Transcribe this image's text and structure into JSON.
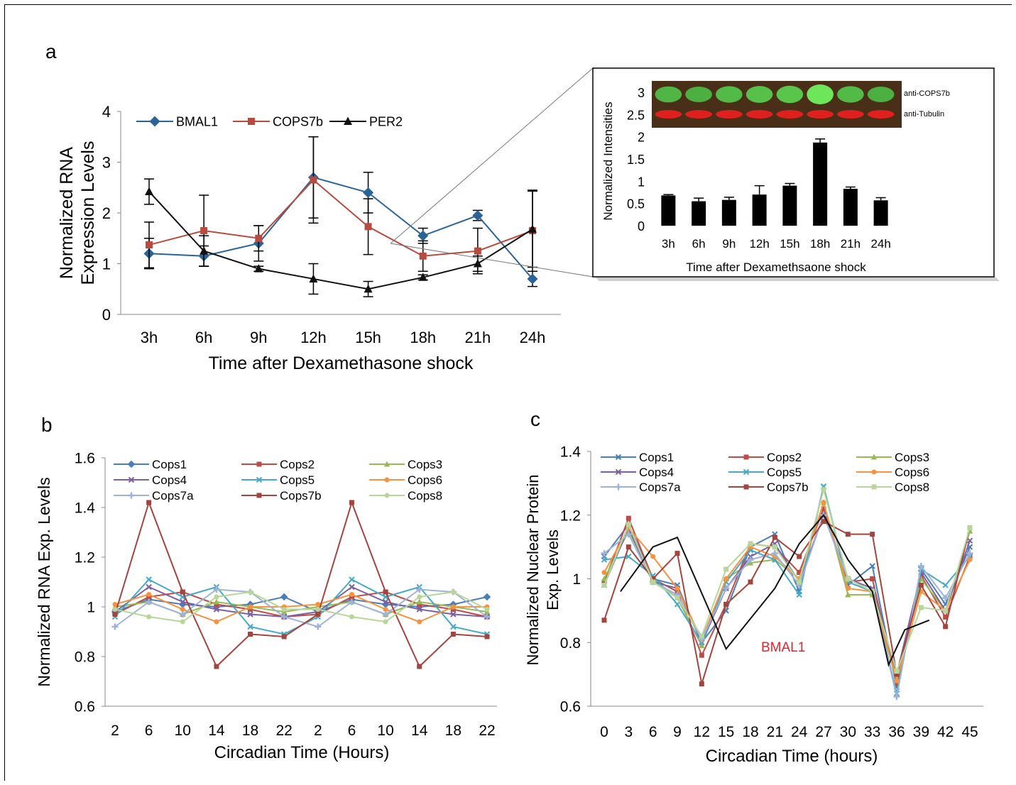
{
  "panels": {
    "a_label": "a",
    "b_label": "b",
    "c_label": "c"
  },
  "colors": {
    "bmal1": "#2a6496",
    "cops7b": "#b84a3f",
    "per2": "#111111",
    "cops1": "#4a7ebb",
    "cops2": "#be4b48",
    "cops3": "#98b954",
    "cops4": "#7d60a0",
    "cops5": "#46aac5",
    "cops6": "#f69240",
    "cops7a": "#9fb3d8",
    "cops7b_b": "#a4443e",
    "cops8": "#b8d69a",
    "bmal1_text": "#e0252a",
    "blot_green": "#3fa244",
    "blot_red": "#e0201e"
  },
  "chart_data": [
    {
      "id": "a",
      "type": "line",
      "title": "",
      "xlabel": "Time after Dexamethasone shock",
      "ylabel": "Normalized RNA Expression Levels",
      "ylabel_lines": [
        "Normalized RNA",
        "Expression Levels"
      ],
      "categories": [
        "3h",
        "6h",
        "9h",
        "12h",
        "15h",
        "18h",
        "21h",
        "24h"
      ],
      "ylim": [
        0,
        4
      ],
      "yticks": [
        "0",
        "1",
        "2",
        "3",
        "4"
      ],
      "legend_position": "top",
      "series": [
        {
          "name": "BMAL1",
          "marker": "diamond",
          "color": "#2a6496",
          "values": [
            1.2,
            1.15,
            1.4,
            2.7,
            2.4,
            1.55,
            1.95,
            0.7
          ],
          "errors": [
            0.3,
            0.2,
            0.35,
            0.8,
            0.4,
            0.15,
            0.1,
            0.15
          ]
        },
        {
          "name": "COPS7b",
          "marker": "square",
          "color": "#b84a3f",
          "values": [
            1.37,
            1.65,
            1.5,
            2.65,
            1.73,
            1.15,
            1.25,
            1.65
          ],
          "errors": [
            0.45,
            0.7,
            0.25,
            0.85,
            0.55,
            0.3,
            0.45,
            0.8
          ]
        },
        {
          "name": "PER2",
          "marker": "triangle",
          "color": "#111111",
          "values": [
            2.42,
            1.25,
            0.9,
            0.7,
            0.5,
            0.73,
            1.0,
            1.68
          ],
          "errors": [
            0.25,
            0.3,
            0.05,
            0.3,
            0.15,
            0.05,
            0.15,
            0.75
          ]
        }
      ]
    },
    {
      "id": "a_inset",
      "type": "bar",
      "title": "",
      "xlabel": "Time after Dexamethsaone shock",
      "ylabel": "Normalized Intensities",
      "categories": [
        "3h",
        "6h",
        "9h",
        "12h",
        "15h",
        "18h",
        "21h",
        "24h"
      ],
      "values": [
        0.68,
        0.55,
        0.58,
        0.7,
        0.9,
        1.87,
        0.83,
        0.57
      ],
      "errors": [
        0.02,
        0.07,
        0.06,
        0.2,
        0.05,
        0.08,
        0.04,
        0.06
      ],
      "ylim": [
        0,
        3
      ],
      "yticks": [
        "0",
        "0.5",
        "1",
        "1.5",
        "2",
        "2.5",
        "3"
      ],
      "blot_labels": [
        "anti-COPS7b",
        "anti-Tubulin"
      ],
      "blot_green_intensity": [
        0.55,
        0.5,
        0.6,
        0.65,
        0.7,
        1.0,
        0.6,
        0.5
      ]
    },
    {
      "id": "b",
      "type": "line",
      "title": "",
      "xlabel": "Circadian Time (Hours)",
      "ylabel": "Normalized RNA Exp. Levels",
      "categories": [
        "2",
        "6",
        "10",
        "14",
        "18",
        "22",
        "2",
        "6",
        "10",
        "14",
        "18",
        "22"
      ],
      "ylim": [
        0.6,
        1.6
      ],
      "yticks": [
        "0.6",
        "0.8",
        "1",
        "1.2",
        "1.4",
        "1.6"
      ],
      "legend_position": "top",
      "series": [
        {
          "name": "Cops1",
          "marker": "diamond",
          "color": "#4a7ebb",
          "values": [
            0.98,
            1.03,
            1.01,
            1.0,
            1.01,
            1.04,
            0.98,
            1.03,
            1.01,
            1.0,
            1.01,
            1.04
          ]
        },
        {
          "name": "Cops2",
          "marker": "square",
          "color": "#be4b48",
          "values": [
            0.97,
            1.04,
            1.06,
            1.01,
            0.99,
            0.96,
            0.97,
            1.04,
            1.06,
            1.01,
            0.99,
            0.96
          ]
        },
        {
          "name": "Cops3",
          "marker": "triangle",
          "color": "#98b954",
          "values": [
            1.0,
            1.02,
            0.97,
            1.02,
            1.0,
            0.98,
            1.0,
            1.02,
            0.97,
            1.02,
            1.0,
            0.98
          ]
        },
        {
          "name": "Cops4",
          "marker": "x",
          "color": "#7d60a0",
          "values": [
            0.98,
            1.08,
            1.02,
            0.99,
            0.97,
            0.96,
            0.98,
            1.08,
            1.02,
            0.99,
            0.97,
            0.96
          ]
        },
        {
          "name": "Cops5",
          "marker": "x",
          "color": "#46aac5",
          "values": [
            0.96,
            1.11,
            1.04,
            1.08,
            0.92,
            0.89,
            0.96,
            1.11,
            1.04,
            1.08,
            0.92,
            0.89
          ]
        },
        {
          "name": "Cops6",
          "marker": "circle",
          "color": "#f69240",
          "values": [
            1.01,
            1.05,
            0.99,
            0.94,
            1.0,
            1.0,
            1.01,
            1.05,
            0.99,
            0.94,
            1.0,
            1.0
          ]
        },
        {
          "name": "Cops7a",
          "marker": "plus",
          "color": "#9fb3d8",
          "values": [
            0.92,
            1.02,
            0.97,
            1.07,
            1.06,
            0.96,
            0.92,
            1.02,
            0.97,
            1.07,
            1.06,
            0.96
          ]
        },
        {
          "name": "Cops7b",
          "marker": "square",
          "color": "#a4443e",
          "values": [
            0.97,
            1.42,
            1.06,
            0.76,
            0.89,
            0.88,
            0.97,
            1.42,
            1.06,
            0.76,
            0.89,
            0.88
          ]
        },
        {
          "name": "Cops8",
          "marker": "circle",
          "color": "#b8d69a",
          "values": [
            0.99,
            0.96,
            0.94,
            1.04,
            1.06,
            0.99,
            0.99,
            0.96,
            0.94,
            1.04,
            1.06,
            0.99
          ]
        }
      ]
    },
    {
      "id": "c",
      "type": "line",
      "title": "",
      "xlabel": "Circadian Time (hours)",
      "ylabel": "Normalized Nuclear Protein Exp. Levels",
      "ylabel_lines": [
        "Normalized Nuclear Protein",
        "Exp. Levels"
      ],
      "x": [
        0,
        3,
        6,
        9,
        12,
        15,
        18,
        21,
        24,
        27,
        30,
        33,
        36,
        39,
        42,
        45
      ],
      "categories": [
        "0",
        "3",
        "6",
        "9",
        "12",
        "15",
        "18",
        "21",
        "24",
        "27",
        "30",
        "33",
        "36",
        "39",
        "42",
        "45"
      ],
      "ylim": [
        0.6,
        1.4
      ],
      "yticks": [
        "0.6",
        "0.8",
        "1",
        "1.2",
        "1.4"
      ],
      "legend_position": "top",
      "annotation": "BMAL1",
      "series": [
        {
          "name": "Cops1",
          "marker": "x",
          "color": "#4a7ebb",
          "values": [
            1.07,
            1.17,
            1.0,
            0.98,
            0.8,
            0.9,
            1.1,
            1.14,
            0.96,
            1.29,
            0.98,
            1.04,
            0.66,
            1.03,
            0.92,
            1.1
          ]
        },
        {
          "name": "Cops2",
          "marker": "square",
          "color": "#be4b48",
          "values": [
            0.99,
            1.19,
            1.0,
            0.96,
            0.76,
            0.92,
            1.11,
            1.1,
            1.02,
            1.22,
            0.99,
            1.0,
            0.67,
            1.01,
            0.88,
            1.07
          ]
        },
        {
          "name": "Cops3",
          "marker": "triangle",
          "color": "#98b954",
          "values": [
            1.0,
            1.15,
            1.0,
            0.94,
            0.79,
            1.0,
            1.05,
            1.06,
            1.0,
            1.24,
            0.95,
            0.95,
            0.68,
            1.0,
            0.9,
            1.15
          ]
        },
        {
          "name": "Cops4",
          "marker": "x",
          "color": "#7d60a0",
          "values": [
            0.98,
            1.16,
            0.99,
            0.97,
            0.8,
            0.97,
            1.07,
            1.11,
            0.99,
            1.2,
            1.0,
            0.97,
            0.7,
            1.02,
            0.9,
            1.12
          ]
        },
        {
          "name": "Cops5",
          "marker": "x",
          "color": "#46aac5",
          "values": [
            1.06,
            1.07,
            1.01,
            0.92,
            0.8,
            0.99,
            1.09,
            1.06,
            0.95,
            1.29,
            0.99,
            0.96,
            0.64,
            1.03,
            0.98,
            1.07
          ]
        },
        {
          "name": "Cops6",
          "marker": "circle",
          "color": "#f69240",
          "values": [
            1.02,
            1.16,
            1.07,
            0.97,
            0.81,
            1.0,
            1.1,
            1.07,
            1.0,
            1.24,
            0.97,
            0.96,
            0.68,
            0.96,
            0.9,
            1.06
          ]
        },
        {
          "name": "Cops7a",
          "marker": "plus",
          "color": "#9fb3d8",
          "values": [
            1.08,
            1.14,
            0.99,
            0.95,
            0.81,
            0.97,
            1.06,
            1.08,
            0.98,
            1.2,
            1.0,
            0.96,
            0.63,
            1.04,
            0.94,
            1.08
          ]
        },
        {
          "name": "Cops7b",
          "marker": "square",
          "color": "#a4443e",
          "values": [
            0.87,
            1.1,
            1.0,
            1.08,
            0.67,
            0.92,
            0.99,
            1.13,
            1.07,
            1.18,
            1.14,
            1.14,
            0.7,
            0.98,
            0.85,
            1.16
          ]
        },
        {
          "name": "Cops8",
          "marker": "square",
          "color": "#b8d69a",
          "values": [
            0.98,
            1.17,
            0.99,
            0.94,
            0.82,
            1.03,
            1.11,
            1.1,
            0.99,
            1.28,
            1.0,
            0.96,
            0.71,
            0.91,
            0.9,
            1.16
          ]
        },
        {
          "name": "BMAL1",
          "marker": "none",
          "color": "#111111",
          "x": [
            2,
            6,
            9,
            15,
            21,
            24,
            27,
            30,
            33,
            35,
            37,
            40
          ],
          "values": [
            0.96,
            1.1,
            1.13,
            0.78,
            0.97,
            1.11,
            1.2,
            1.06,
            0.96,
            0.73,
            0.84,
            0.87
          ]
        }
      ]
    }
  ]
}
